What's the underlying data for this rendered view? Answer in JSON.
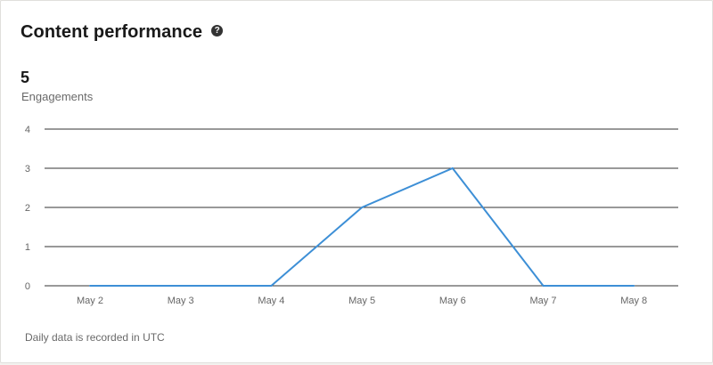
{
  "card": {
    "title": "Content performance",
    "help_icon": "question-circle-icon",
    "metric_value": "5",
    "metric_label": "Engagements",
    "footnote": "Daily data is recorded in UTC"
  },
  "colors": {
    "line": "#3d8fd6",
    "grid": "#333333",
    "tick_text": "#666666"
  },
  "chart_data": {
    "type": "line",
    "categories": [
      "May 2",
      "May 3",
      "May 4",
      "May 5",
      "May 6",
      "May 7",
      "May 8"
    ],
    "y_ticks": [
      0,
      1,
      2,
      3,
      4
    ],
    "ylim": [
      0,
      4
    ],
    "grid": true,
    "series": [
      {
        "values": [
          0,
          0,
          0,
          2,
          3,
          0,
          0
        ]
      }
    ]
  }
}
